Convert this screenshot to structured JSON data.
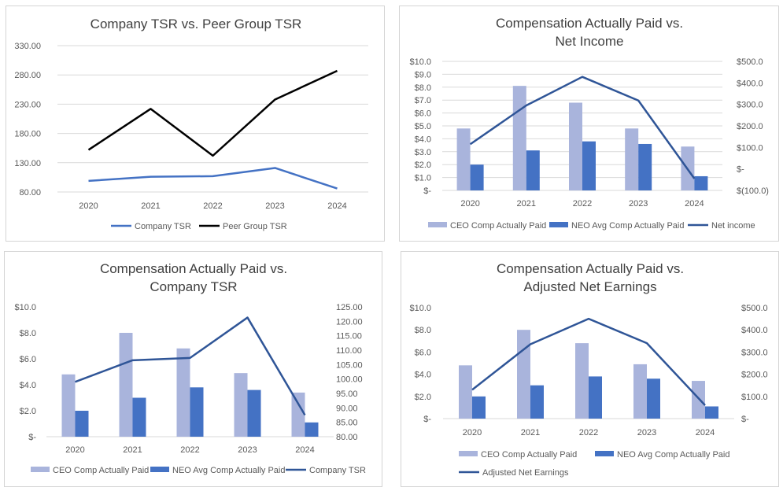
{
  "colors": {
    "ceo_bar": "#a9b4dc",
    "neo_bar": "#4472c4",
    "line_blue": "#2f5597",
    "company_tsr_line": "#4472c4",
    "peer_tsr_line": "#000000",
    "gridline": "#d9d9d9",
    "axis_text": "#595959",
    "title_text": "#404040"
  },
  "chart_data": [
    {
      "type": "line",
      "title": "Company TSR vs. Peer Group TSR",
      "categories": [
        "2020",
        "2021",
        "2022",
        "2023",
        "2024"
      ],
      "series": [
        {
          "name": "Company TSR",
          "values": [
            99,
            106,
            107,
            121,
            86
          ]
        },
        {
          "name": "Peer Group TSR",
          "values": [
            152,
            222,
            142,
            238,
            287
          ]
        }
      ],
      "yaxis": {
        "min": 80,
        "max": 330,
        "step": 50,
        "tick_labels": [
          "80.00",
          "130.00",
          "180.00",
          "230.00",
          "280.00",
          "330.00"
        ]
      },
      "grid": true,
      "legend": "bottom"
    },
    {
      "type": "bar",
      "title": "Compensation Actually Paid vs. Net Income",
      "title_lines": [
        "Compensation Actually Paid vs.",
        "Net Income"
      ],
      "categories": [
        "2020",
        "2021",
        "2022",
        "2023",
        "2024"
      ],
      "series": [
        {
          "name": "CEO Comp Actually Paid",
          "type": "bar",
          "axis": "left",
          "values": [
            4.8,
            8.1,
            6.8,
            4.8,
            3.4
          ]
        },
        {
          "name": "NEO Avg Comp Actually Paid",
          "type": "bar",
          "axis": "left",
          "values": [
            2.0,
            3.1,
            3.8,
            3.6,
            1.1
          ]
        },
        {
          "name": "Net income",
          "type": "line",
          "axis": "right",
          "values": [
            115,
            295,
            428,
            318,
            -45
          ]
        }
      ],
      "yaxis_left": {
        "min": 0,
        "max": 10,
        "tick_labels": [
          "$-",
          "$1.0",
          "$2.0",
          "$3.0",
          "$4.0",
          "$5.0",
          "$6.0",
          "$7.0",
          "$8.0",
          "$9.0",
          "$10.0"
        ]
      },
      "yaxis_right": {
        "min": -100,
        "max": 500,
        "tick_labels": [
          "$(100.0)",
          "$-",
          "$100.0",
          "$200.0",
          "$300.0",
          "$400.0",
          "$500.0"
        ]
      },
      "grid": true,
      "legend": "bottom"
    },
    {
      "type": "bar",
      "title": "Compensation Actually Paid vs. Company TSR",
      "title_lines": [
        "Compensation Actually Paid vs.",
        "Company TSR"
      ],
      "categories": [
        "2020",
        "2021",
        "2022",
        "2023",
        "2024"
      ],
      "series": [
        {
          "name": "CEO Comp Actually Paid",
          "type": "bar",
          "axis": "left",
          "values": [
            4.8,
            8.0,
            6.8,
            4.9,
            3.4
          ]
        },
        {
          "name": "NEO Avg Comp Actually Paid",
          "type": "bar",
          "axis": "left",
          "values": [
            2.0,
            3.0,
            3.8,
            3.6,
            1.1
          ]
        },
        {
          "name": "Company TSR",
          "type": "line",
          "axis": "right",
          "values": [
            99,
            106.5,
            107.3,
            121.3,
            87.5
          ]
        }
      ],
      "yaxis_left": {
        "min": 0,
        "max": 10,
        "tick_labels": [
          "$-",
          "$2.0",
          "$4.0",
          "$6.0",
          "$8.0",
          "$10.0"
        ]
      },
      "yaxis_right": {
        "min": 80,
        "max": 125,
        "tick_labels": [
          "80.00",
          "85.00",
          "90.00",
          "95.00",
          "100.00",
          "105.00",
          "110.00",
          "115.00",
          "120.00",
          "125.00"
        ]
      },
      "grid": false,
      "legend": "bottom"
    },
    {
      "type": "bar",
      "title": "Compensation Actually Paid vs. Adjusted Net Earnings",
      "title_lines": [
        "Compensation Actually Paid vs.",
        "Adjusted Net Earnings"
      ],
      "categories": [
        "2020",
        "2021",
        "2022",
        "2023",
        "2024"
      ],
      "series": [
        {
          "name": "CEO Comp Actually Paid",
          "type": "bar",
          "axis": "left",
          "values": [
            4.8,
            8.0,
            6.8,
            4.9,
            3.4
          ]
        },
        {
          "name": "NEO Avg Comp Actually Paid",
          "type": "bar",
          "axis": "left",
          "values": [
            2.0,
            3.0,
            3.8,
            3.6,
            1.1
          ]
        },
        {
          "name": "Adjusted Net Earnings",
          "type": "line",
          "axis": "right",
          "values": [
            130,
            335,
            450,
            340,
            60
          ]
        }
      ],
      "yaxis_left": {
        "min": 0,
        "max": 10,
        "tick_labels": [
          "$-",
          "$2.0",
          "$4.0",
          "$6.0",
          "$8.0",
          "$10.0"
        ]
      },
      "yaxis_right": {
        "min": 0,
        "max": 500,
        "tick_labels": [
          "$-",
          "$100.0",
          "$200.0",
          "$300.0",
          "$400.0",
          "$500.0"
        ]
      },
      "grid": false,
      "legend": "bottom"
    }
  ]
}
